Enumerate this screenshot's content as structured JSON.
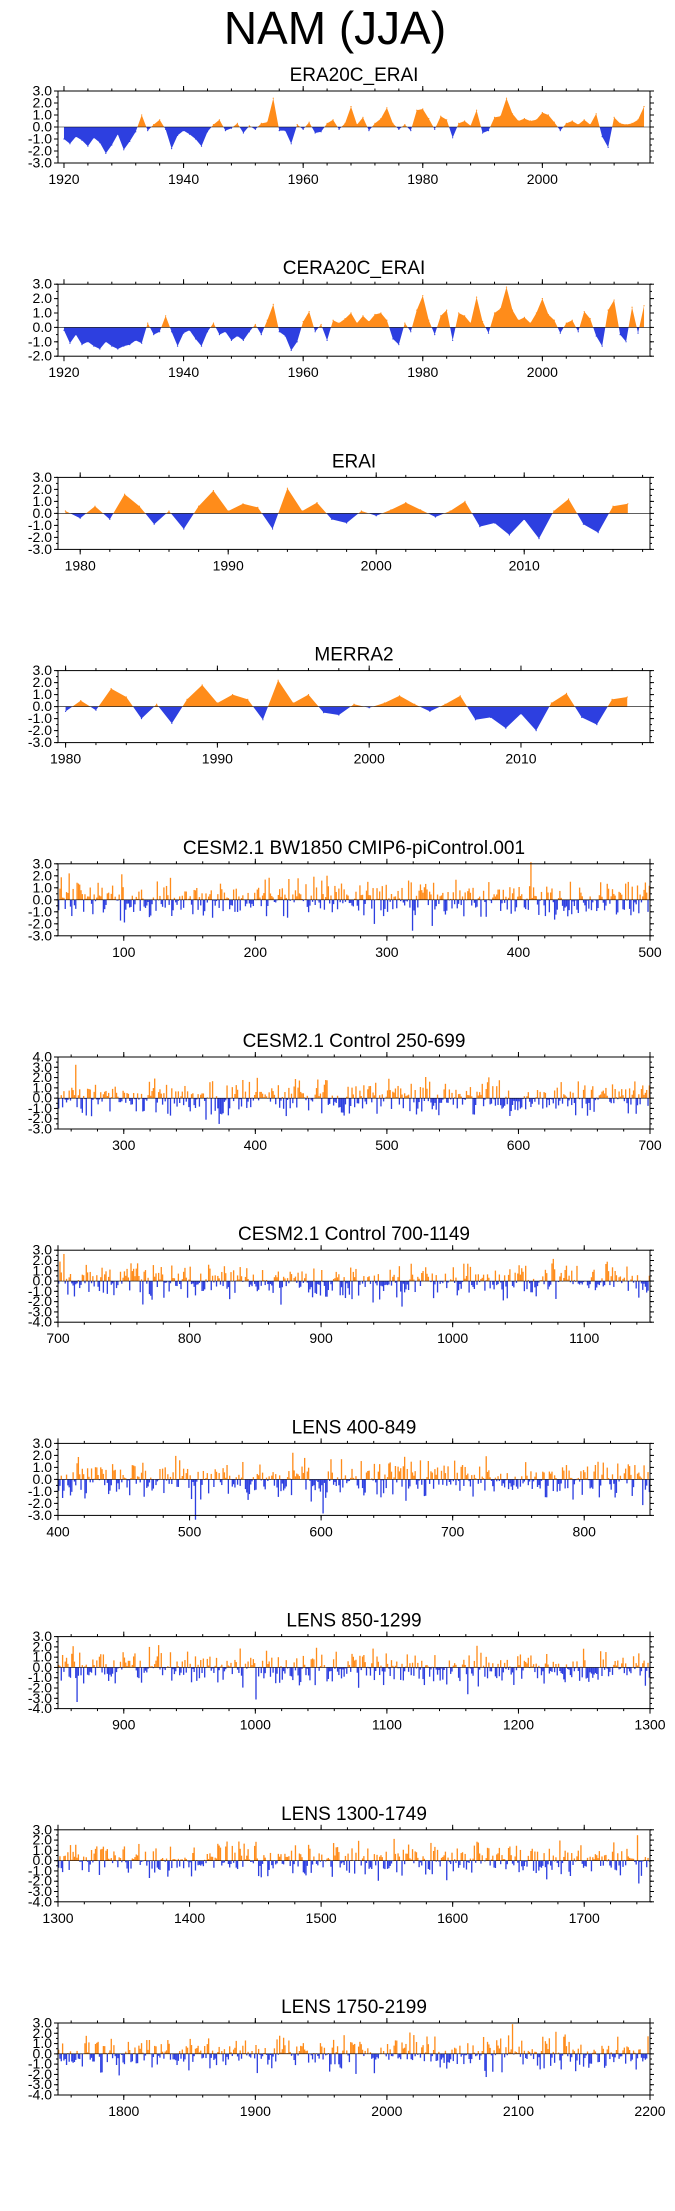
{
  "figure_title": "NAM (JJA)",
  "colors": {
    "positive": "#ff8c1a",
    "negative": "#2d3fe0"
  },
  "chart_data": [
    {
      "type": "area",
      "title": "ERA20C_ERAI",
      "xlim": [
        1919,
        2018
      ],
      "ylim": [
        -3,
        3
      ],
      "xticks": [
        1920,
        1940,
        1960,
        1980,
        2000
      ],
      "yticks": [
        3,
        2,
        1,
        0,
        -1,
        -2,
        -3
      ],
      "ytick_labels": [
        "3.0",
        "2.0",
        "1.0",
        "0.0",
        "-1.0",
        "-2.0",
        "-3.0"
      ],
      "sparse": true,
      "smooth": true,
      "seed": 0,
      "x": [
        1920,
        1921,
        1922,
        1923,
        1924,
        1925,
        1926,
        1927,
        1928,
        1929,
        1930,
        1931,
        1932,
        1933,
        1934,
        1935,
        1936,
        1937,
        1938,
        1939,
        1940,
        1941,
        1942,
        1943,
        1944,
        1945,
        1946,
        1947,
        1948,
        1949,
        1950,
        1951,
        1952,
        1953,
        1954,
        1955,
        1956,
        1957,
        1958,
        1959,
        1960,
        1961,
        1962,
        1963,
        1964,
        1965,
        1966,
        1967,
        1968,
        1969,
        1970,
        1971,
        1972,
        1973,
        1974,
        1975,
        1976,
        1977,
        1978,
        1979,
        1980,
        1981,
        1982,
        1983,
        1984,
        1985,
        1986,
        1987,
        1988,
        1989,
        1990,
        1991,
        1992,
        1993,
        1994,
        1995,
        1996,
        1997,
        1998,
        1999,
        2000,
        2001,
        2002,
        2003,
        2004,
        2005,
        2006,
        2007,
        2008,
        2009,
        2010,
        2011,
        2012,
        2013,
        2014,
        2015,
        2016,
        2017
      ],
      "values": [
        -1.0,
        -1.4,
        -0.8,
        -1.1,
        -1.6,
        -0.9,
        -1.3,
        -2.2,
        -1.5,
        -0.6,
        -1.9,
        -1.2,
        -0.4,
        1.0,
        -0.3,
        0.2,
        0.6,
        -0.2,
        -1.8,
        -0.7,
        -0.3,
        -0.6,
        -1.0,
        -1.6,
        -0.4,
        0.2,
        0.6,
        -0.3,
        -0.1,
        0.3,
        -0.5,
        0.1,
        -0.2,
        0.3,
        0.4,
        2.4,
        -0.3,
        -0.3,
        -1.4,
        0.2,
        -0.2,
        0.4,
        -0.5,
        -0.4,
        0.3,
        0.6,
        -0.2,
        0.3,
        1.7,
        0.2,
        0.8,
        -0.3,
        0.3,
        0.7,
        1.6,
        0.3,
        -0.2,
        0.2,
        -0.3,
        1.4,
        1.5,
        0.7,
        -0.2,
        0.9,
        0.6,
        -0.9,
        0.3,
        0.5,
        0.1,
        1.4,
        -0.5,
        -0.3,
        0.8,
        0.9,
        2.4,
        1.1,
        0.5,
        0.7,
        0.5,
        0.6,
        1.2,
        1.0,
        0.4,
        -0.3,
        0.3,
        0.5,
        0.2,
        0.6,
        0.2,
        1.1,
        -0.8,
        -1.7,
        0.8,
        0.3,
        0.2,
        0.3,
        0.6,
        1.7
      ]
    },
    {
      "type": "area",
      "title": "CERA20C_ERAI",
      "xlim": [
        1919,
        2018
      ],
      "ylim": [
        -2,
        3
      ],
      "xticks": [
        1920,
        1940,
        1960,
        1980,
        2000
      ],
      "yticks": [
        3,
        2,
        1,
        0,
        -1,
        -2
      ],
      "ytick_labels": [
        "3.0",
        "2.0",
        "1.0",
        "0.0",
        "-1.0",
        "-2.0"
      ],
      "sparse": true,
      "smooth": true,
      "seed": 0,
      "x": [
        1920,
        1921,
        1922,
        1923,
        1924,
        1925,
        1926,
        1927,
        1928,
        1929,
        1930,
        1931,
        1932,
        1933,
        1934,
        1935,
        1936,
        1937,
        1938,
        1939,
        1940,
        1941,
        1942,
        1943,
        1944,
        1945,
        1946,
        1947,
        1948,
        1949,
        1950,
        1951,
        1952,
        1953,
        1954,
        1955,
        1956,
        1957,
        1958,
        1959,
        1960,
        1961,
        1962,
        1963,
        1964,
        1965,
        1966,
        1967,
        1968,
        1969,
        1970,
        1971,
        1972,
        1973,
        1974,
        1975,
        1976,
        1977,
        1978,
        1979,
        1980,
        1981,
        1982,
        1983,
        1984,
        1985,
        1986,
        1987,
        1988,
        1989,
        1990,
        1991,
        1992,
        1993,
        1994,
        1995,
        1996,
        1997,
        1998,
        1999,
        2000,
        2001,
        2002,
        2003,
        2004,
        2005,
        2006,
        2007,
        2008,
        2009,
        2010,
        2011,
        2012,
        2013,
        2014,
        2015,
        2016,
        2017
      ],
      "values": [
        -0.2,
        -1.1,
        -0.5,
        -1.2,
        -1.0,
        -1.3,
        -1.5,
        -1.0,
        -1.3,
        -1.5,
        -1.3,
        -1.2,
        -0.9,
        -1.1,
        0.3,
        -0.5,
        -0.3,
        0.8,
        -0.3,
        -1.3,
        -0.4,
        -0.2,
        -0.8,
        -1.3,
        -0.3,
        0.3,
        -0.5,
        -0.3,
        -0.9,
        -0.6,
        -0.9,
        -0.3,
        0.2,
        -0.5,
        0.5,
        1.6,
        -0.3,
        -0.6,
        -1.6,
        -1.0,
        0.4,
        1.1,
        -0.3,
        0.2,
        -0.9,
        0.5,
        0.3,
        0.6,
        1.0,
        0.3,
        0.8,
        0.4,
        0.9,
        1.0,
        0.5,
        -0.8,
        -1.2,
        0.3,
        -0.3,
        1.2,
        2.2,
        0.5,
        -0.5,
        0.8,
        1.2,
        -0.9,
        1.0,
        0.8,
        0.3,
        2.1,
        0.4,
        -0.4,
        1.0,
        1.3,
        2.8,
        1.2,
        0.5,
        0.7,
        0.3,
        1.0,
        2.0,
        0.9,
        0.5,
        -0.4,
        0.3,
        0.5,
        -0.3,
        1.1,
        0.6,
        -0.6,
        -1.3,
        1.2,
        1.9,
        -0.5,
        -1.0,
        1.4,
        -0.4,
        1.5
      ]
    },
    {
      "type": "area",
      "title": "ERAI",
      "xlim": [
        1978.5,
        2018.5
      ],
      "ylim": [
        -3,
        3
      ],
      "xticks": [
        1980,
        1990,
        2000,
        2010
      ],
      "yticks": [
        3,
        2,
        1,
        0,
        -1,
        -2,
        -3
      ],
      "ytick_labels": [
        "3.0",
        "2.0",
        "1.0",
        "0.0",
        "-1.0",
        "-2.0",
        "-3.0"
      ],
      "sparse": true,
      "smooth": false,
      "seed": 0,
      "x": [
        1979,
        1980,
        1981,
        1982,
        1983,
        1984,
        1985,
        1986,
        1987,
        1988,
        1989,
        1990,
        1991,
        1992,
        1993,
        1994,
        1995,
        1996,
        1997,
        1998,
        1999,
        2000,
        2001,
        2002,
        2003,
        2004,
        2005,
        2006,
        2007,
        2008,
        2009,
        2010,
        2011,
        2012,
        2013,
        2014,
        2015,
        2016,
        2017
      ],
      "values": [
        0.2,
        -0.4,
        0.6,
        -0.5,
        1.6,
        0.6,
        -0.9,
        0.2,
        -1.3,
        0.6,
        1.9,
        0.2,
        0.8,
        0.5,
        -1.3,
        2.1,
        0.2,
        0.9,
        -0.5,
        -0.8,
        0.2,
        -0.2,
        0.3,
        0.9,
        0.3,
        -0.3,
        0.2,
        1.0,
        -1.1,
        -0.8,
        -1.8,
        -0.5,
        -2.1,
        0.2,
        1.2,
        -0.9,
        -1.6,
        0.6,
        0.8
      ]
    },
    {
      "type": "area",
      "title": "MERRA2",
      "xlim": [
        1979.5,
        2018.5
      ],
      "ylim": [
        -3,
        3
      ],
      "xticks": [
        1980,
        1990,
        2000,
        2010
      ],
      "yticks": [
        3,
        2,
        1,
        0,
        -1,
        -2,
        -3
      ],
      "ytick_labels": [
        "3.0",
        "2.0",
        "1.0",
        "0.0",
        "-1.0",
        "-2.0",
        "-3.0"
      ],
      "sparse": true,
      "smooth": false,
      "seed": 0,
      "x": [
        1980,
        1981,
        1982,
        1983,
        1984,
        1985,
        1986,
        1987,
        1988,
        1989,
        1990,
        1991,
        1992,
        1993,
        1994,
        1995,
        1996,
        1997,
        1998,
        1999,
        2000,
        2001,
        2002,
        2003,
        2004,
        2005,
        2006,
        2007,
        2008,
        2009,
        2010,
        2011,
        2012,
        2013,
        2014,
        2015,
        2016,
        2017
      ],
      "values": [
        -0.4,
        0.5,
        -0.3,
        1.5,
        0.8,
        -1.0,
        0.2,
        -1.4,
        0.6,
        1.8,
        0.3,
        1.0,
        0.6,
        -1.1,
        2.2,
        0.3,
        1.0,
        -0.5,
        -0.7,
        0.2,
        -0.1,
        0.3,
        0.9,
        0.2,
        -0.4,
        0.2,
        0.9,
        -1.1,
        -0.9,
        -1.8,
        -0.6,
        -2.0,
        0.3,
        1.1,
        -0.9,
        -1.5,
        0.6,
        0.8
      ]
    },
    {
      "type": "area",
      "title": "CESM2.1 BW1850 CMIP6-piControl.001",
      "xlim": [
        50,
        500
      ],
      "ylim": [
        -3,
        3
      ],
      "xticks": [
        100,
        200,
        300,
        400,
        500
      ],
      "yticks": [
        3,
        2,
        1,
        0,
        -1,
        -2,
        -3
      ],
      "ytick_labels": [
        "3.0",
        "2.0",
        "1.0",
        "0.0",
        "-1.0",
        "-2.0",
        "-3.0"
      ],
      "sparse": false,
      "seed": 11,
      "n": 450
    },
    {
      "type": "area",
      "title": "CESM2.1 Control 250-699",
      "xlim": [
        250,
        700
      ],
      "ylim": [
        -3,
        4
      ],
      "xticks": [
        300,
        400,
        500,
        600,
        700
      ],
      "yticks": [
        4,
        3,
        2,
        1,
        0,
        -1,
        -2,
        -3
      ],
      "ytick_labels": [
        "4.0",
        "3.0",
        "2.0",
        "1.0",
        "0.0",
        "-1.0",
        "-2.0",
        "-3.0"
      ],
      "sparse": false,
      "seed": 23,
      "n": 450
    },
    {
      "type": "area",
      "title": "CESM2.1 Control 700-1149",
      "xlim": [
        700,
        1150
      ],
      "ylim": [
        -4,
        3
      ],
      "xticks": [
        700,
        800,
        900,
        1000,
        1100
      ],
      "yticks": [
        3,
        2,
        1,
        0,
        -1,
        -2,
        -3,
        -4
      ],
      "ytick_labels": [
        "3.0",
        "2.0",
        "1.0",
        "0.0",
        "-1.0",
        "-2.0",
        "-3.0",
        "-4.0"
      ],
      "sparse": false,
      "seed": 37,
      "n": 450
    },
    {
      "type": "area",
      "title": "LENS 400-849",
      "xlim": [
        400,
        850
      ],
      "ylim": [
        -3,
        3
      ],
      "xticks": [
        400,
        500,
        600,
        700,
        800
      ],
      "yticks": [
        3,
        2,
        1,
        0,
        -1,
        -2,
        -3
      ],
      "ytick_labels": [
        "3.0",
        "2.0",
        "1.0",
        "0.0",
        "-1.0",
        "-2.0",
        "-3.0"
      ],
      "sparse": false,
      "seed": 41,
      "n": 450
    },
    {
      "type": "area",
      "title": "LENS 850-1299",
      "xlim": [
        850,
        1300
      ],
      "ylim": [
        -4,
        3
      ],
      "xticks": [
        900,
        1000,
        1100,
        1200,
        1300
      ],
      "yticks": [
        3,
        2,
        1,
        0,
        -1,
        -2,
        -3,
        -4
      ],
      "ytick_labels": [
        "3.0",
        "2.0",
        "1.0",
        "0.0",
        "-1.0",
        "-2.0",
        "-3.0",
        "-4.0"
      ],
      "sparse": false,
      "seed": 53,
      "n": 450
    },
    {
      "type": "area",
      "title": "LENS 1300-1749",
      "xlim": [
        1300,
        1750
      ],
      "ylim": [
        -4,
        3
      ],
      "xticks": [
        1300,
        1400,
        1500,
        1600,
        1700
      ],
      "yticks": [
        3,
        2,
        1,
        0,
        -1,
        -2,
        -3,
        -4
      ],
      "ytick_labels": [
        "3.0",
        "2.0",
        "1.0",
        "0.0",
        "-1.0",
        "-2.0",
        "-3.0",
        "-4.0"
      ],
      "sparse": false,
      "seed": 67,
      "n": 450
    },
    {
      "type": "area",
      "title": "LENS 1750-2199",
      "xlim": [
        1750,
        2200
      ],
      "ylim": [
        -4,
        3
      ],
      "xticks": [
        1800,
        1900,
        2000,
        2100,
        2200
      ],
      "yticks": [
        3,
        2,
        1,
        0,
        -1,
        -2,
        -3,
        -4
      ],
      "ytick_labels": [
        "3.0",
        "2.0",
        "1.0",
        "0.0",
        "-1.0",
        "-2.0",
        "-3.0",
        "-4.0"
      ],
      "sparse": false,
      "seed": 79,
      "n": 450
    }
  ]
}
